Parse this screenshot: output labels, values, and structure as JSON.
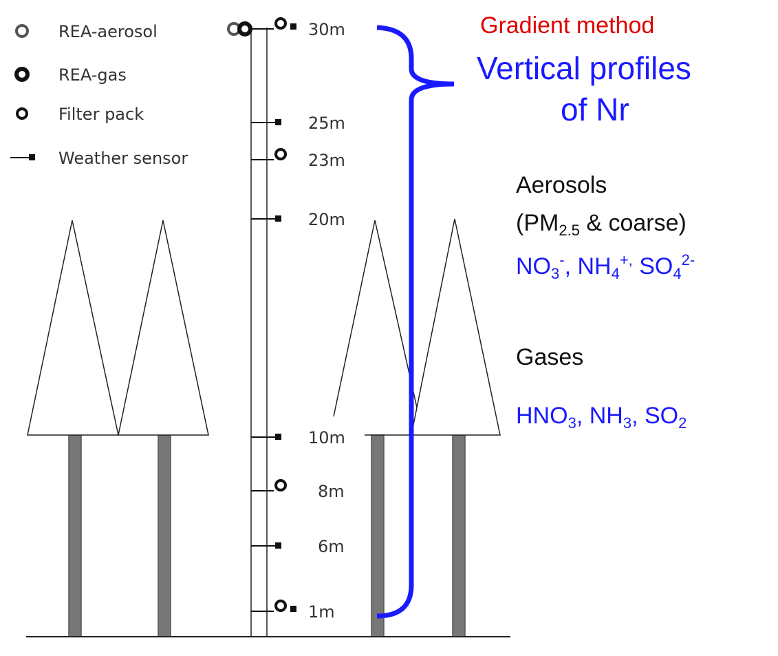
{
  "legend": [
    {
      "label": "REA-aerosol"
    },
    {
      "label": "REA-gas"
    },
    {
      "label": "Filter pack"
    },
    {
      "label": "Weather sensor"
    }
  ],
  "heights": [
    "30m",
    "25m",
    "23m",
    "20m",
    "10m",
    "8m",
    "6m",
    "1m"
  ],
  "annotations": {
    "method": "Gradient method",
    "profiles": [
      "Vertical profiles",
      "of Nr"
    ],
    "aerosols_heading": "Aerosols",
    "aerosols_size": [
      {
        "text": "(PM"
      },
      {
        "sub": "2.5"
      },
      {
        "text": " & coarse)"
      }
    ],
    "aerosols_species": [
      {
        "text": "NO"
      },
      {
        "sub": "3"
      },
      {
        "sup": "-"
      },
      {
        "text": ", NH"
      },
      {
        "sub": "4"
      },
      {
        "sup": "+,"
      },
      {
        "text": " SO"
      },
      {
        "sub": "4"
      },
      {
        "sup": "2-"
      }
    ],
    "gases_heading": "Gases",
    "gases_species": [
      {
        "text": "HNO"
      },
      {
        "sub": "3"
      },
      {
        "text": ", NH"
      },
      {
        "sub": "3"
      },
      {
        "text": ", SO"
      },
      {
        "sub": "2"
      }
    ]
  }
}
